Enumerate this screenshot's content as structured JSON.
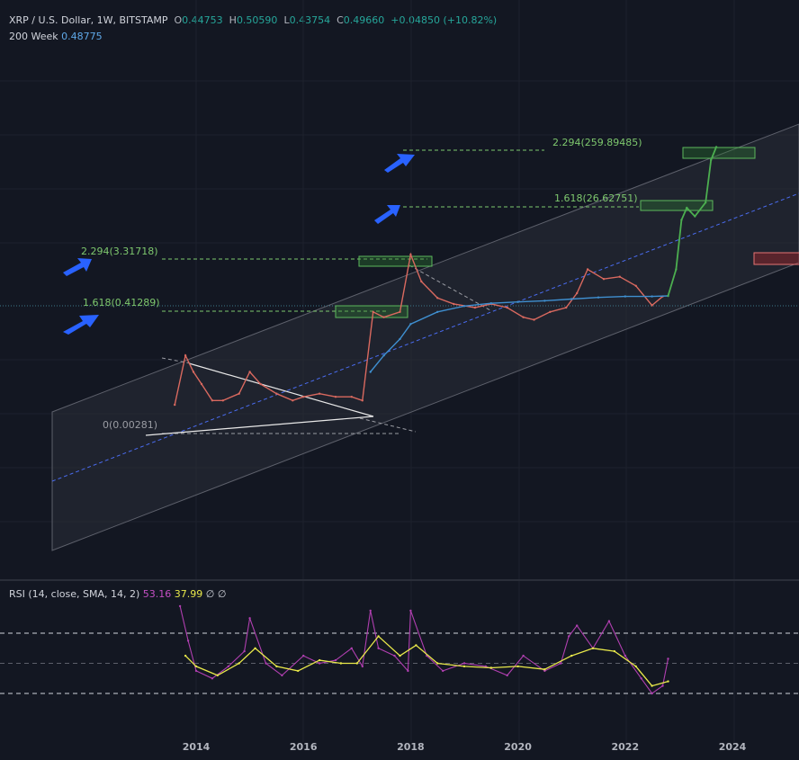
{
  "legend": {
    "symbol": "XRP / U.S. Dollar, 1W, BITSTAMP",
    "o_label": "O",
    "o": "0.44753",
    "h_label": "H",
    "h": "0.50590",
    "l_label": "L",
    "l": "0.43754",
    "c_label": "C",
    "c": "0.49660",
    "change": "+0.04850 (+10.82%)",
    "ma_label": "200 Week",
    "ma_value": "0.48775"
  },
  "rsi": {
    "label": "RSI (14, close, SMA, 14, 2)",
    "rsi_value": "53.16",
    "sma_value": "37.99",
    "extra1": "∅",
    "extra2": "∅"
  },
  "fib_labels": {
    "zero": "0(0.00281)",
    "f1618_low": "1.618(0.41289)",
    "f2294_low": "2.294(3.31718)",
    "f1618_high": "1.618(26.62751)",
    "f2294_high": "2.294(259.89485)"
  },
  "chart_data": {
    "type": "line",
    "x_axis_ticks": [
      "2014",
      "2016",
      "2018",
      "2020",
      "2022",
      "2024"
    ],
    "price_series": {
      "name": "XRP / U.S. Dollar",
      "x": [
        2013.6,
        2013.8,
        2013.95,
        2014.1,
        2014.3,
        2014.5,
        2014.8,
        2015.0,
        2015.2,
        2015.5,
        2015.8,
        2016.0,
        2016.3,
        2016.6,
        2016.9,
        2017.1,
        2017.3,
        2017.5,
        2017.8,
        2018.0,
        2018.2,
        2018.5,
        2018.8,
        2019.2,
        2019.5,
        2019.8,
        2020.1,
        2020.3,
        2020.6,
        2020.9,
        2021.1,
        2021.3,
        2021.6,
        2021.9,
        2022.2,
        2022.5,
        2022.7
      ],
      "y": [
        0.005,
        0.04,
        0.02,
        0.012,
        0.006,
        0.006,
        0.008,
        0.02,
        0.012,
        0.008,
        0.006,
        0.007,
        0.008,
        0.007,
        0.007,
        0.006,
        0.25,
        0.2,
        0.25,
        2.8,
        0.9,
        0.45,
        0.35,
        0.3,
        0.35,
        0.3,
        0.2,
        0.18,
        0.25,
        0.3,
        0.55,
        1.5,
        1.0,
        1.1,
        0.75,
        0.33,
        0.48
      ]
    },
    "ma_series": {
      "name": "200 Week",
      "x": [
        2017.25,
        2017.5,
        2017.8,
        2018.0,
        2018.5,
        2019.0,
        2019.5,
        2020.0,
        2020.5,
        2021.0,
        2021.5,
        2022.0,
        2022.5,
        2022.8
      ],
      "y": [
        0.02,
        0.04,
        0.08,
        0.15,
        0.25,
        0.32,
        0.36,
        0.38,
        0.4,
        0.43,
        0.46,
        0.48,
        0.48,
        0.49
      ]
    },
    "projection": {
      "x": [
        2022.8,
        2022.95,
        2023.05,
        2023.15,
        2023.3,
        2023.5,
        2023.6,
        2023.7
      ],
      "y": [
        0.49,
        1.5,
        12,
        20,
        14,
        25,
        150,
        260
      ]
    },
    "rsi_series": {
      "name": "RSI",
      "x": [
        2013.7,
        2013.85,
        2014.0,
        2014.3,
        2014.6,
        2014.9,
        2015.0,
        2015.3,
        2015.6,
        2016.0,
        2016.3,
        2016.6,
        2016.9,
        2017.1,
        2017.25,
        2017.4,
        2017.7,
        2017.95,
        2018.0,
        2018.3,
        2018.6,
        2019.0,
        2019.4,
        2019.8,
        2020.1,
        2020.5,
        2020.8,
        2020.95,
        2021.1,
        2021.4,
        2021.7,
        2022.0,
        2022.3,
        2022.5,
        2022.7,
        2022.8
      ],
      "y": [
        88,
        65,
        45,
        40,
        48,
        58,
        80,
        50,
        42,
        55,
        50,
        52,
        60,
        48,
        85,
        60,
        55,
        45,
        85,
        55,
        45,
        50,
        48,
        42,
        55,
        45,
        50,
        68,
        75,
        60,
        78,
        55,
        40,
        30,
        35,
        53
      ]
    },
    "rsi_sma_series": {
      "name": "RSI SMA",
      "x": [
        2013.8,
        2014.0,
        2014.4,
        2014.8,
        2015.1,
        2015.5,
        2015.9,
        2016.3,
        2016.7,
        2017.0,
        2017.4,
        2017.8,
        2018.1,
        2018.5,
        2019.0,
        2019.5,
        2020.0,
        2020.5,
        2021.0,
        2021.4,
        2021.8,
        2022.2,
        2022.5,
        2022.8
      ],
      "y": [
        55,
        48,
        42,
        50,
        60,
        48,
        45,
        52,
        50,
        50,
        68,
        55,
        62,
        50,
        48,
        47,
        48,
        46,
        55,
        60,
        58,
        48,
        35,
        38
      ]
    },
    "rsi_levels": [
      70,
      50,
      30
    ]
  }
}
